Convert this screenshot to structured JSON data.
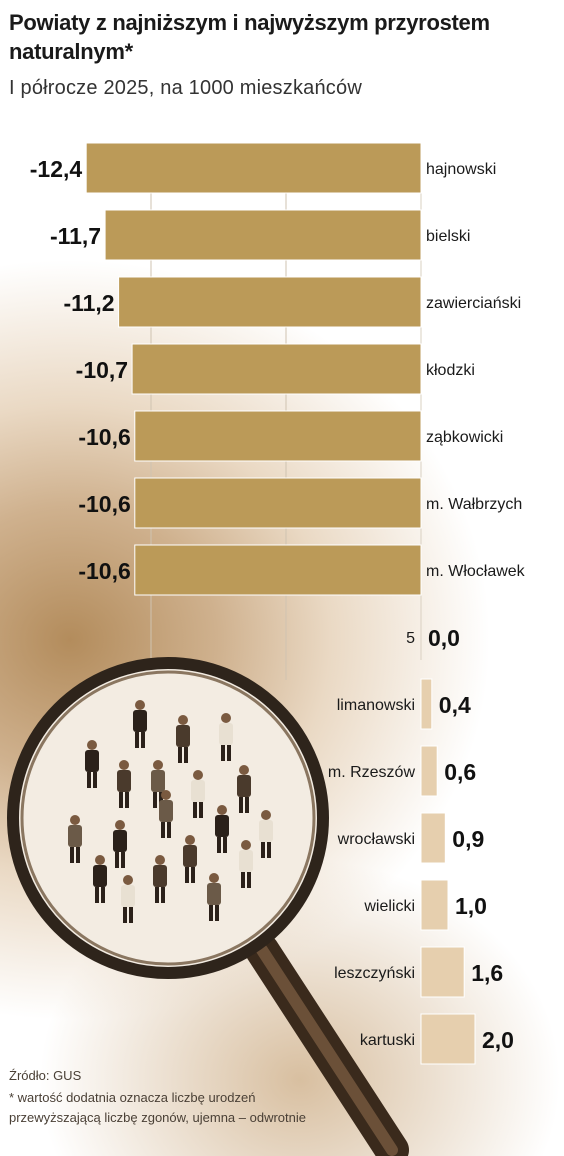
{
  "title": "Powiaty z najniższym i najwyższym przyrostem naturalnym*",
  "subtitle": "I półrocze 2025, na 1000 mieszkańców",
  "source": "Źródło: GUS",
  "note": "* wartość dodatnia oznacza liczbę urodzeń przewyższającą liczbę zgonów, ujemna – odwrotnie",
  "colors": {
    "negative_bar": "#bb9a58",
    "negative_bar_stroke": "#ffffff",
    "positive_bar": "#e6cfae",
    "positive_bar_stroke": "#ffffff"
  },
  "chart_data": {
    "type": "bar",
    "orientation": "horizontal",
    "categories": [
      "hajnowski",
      "bielski",
      "zawierciański",
      "kłodzki",
      "ząbkowicki",
      "m. Wałbrzych",
      "m. Włocławek",
      "5",
      "limanowski",
      "m. Rzeszów",
      "wrocławski",
      "wielicki",
      "leszczyński",
      "kartuski"
    ],
    "values": [
      -12.4,
      -11.7,
      -11.2,
      -10.7,
      -10.6,
      -10.6,
      -10.6,
      0.0,
      0.4,
      0.6,
      0.9,
      1.0,
      1.6,
      2.0
    ],
    "value_labels": [
      "-12,4",
      "-11,7",
      "-11,2",
      "-10,7",
      "-10,6",
      "-10,6",
      "-10,6",
      "0,0",
      "0,4",
      "0,6",
      "0,9",
      "1,0",
      "1,6",
      "2,0"
    ],
    "xlim": [
      -12.4,
      2.0
    ],
    "grid": true
  }
}
